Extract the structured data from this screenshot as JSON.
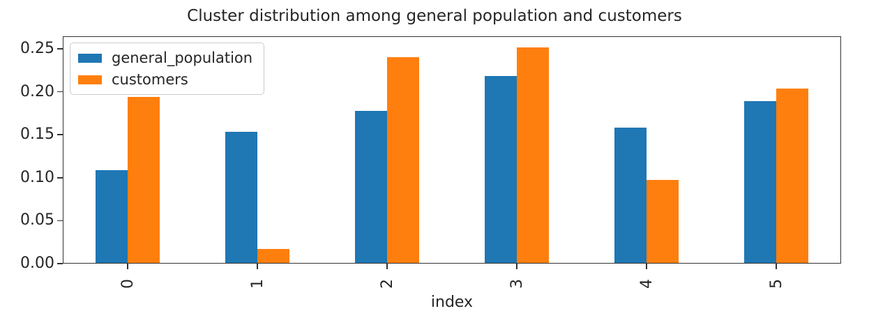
{
  "chart_data": {
    "type": "bar",
    "title": "Cluster distribution among general population and customers",
    "xlabel": "index",
    "ylabel": "",
    "categories": [
      "0",
      "1",
      "2",
      "3",
      "4",
      "5"
    ],
    "series": [
      {
        "name": "general_population",
        "color": "#1f77b4",
        "values": [
          0.109,
          0.153,
          0.178,
          0.218,
          0.158,
          0.189
        ]
      },
      {
        "name": "customers",
        "color": "#ff7f0e",
        "values": [
          0.194,
          0.017,
          0.24,
          0.252,
          0.097,
          0.204
        ]
      }
    ],
    "ylim": [
      0,
      0.2646
    ],
    "yticks": [
      "0.00",
      "0.05",
      "0.10",
      "0.15",
      "0.20",
      "0.25"
    ],
    "xtick_rotation_deg": 90,
    "grid": false,
    "legend": {
      "position": "upper left",
      "entries": [
        "general_population",
        "customers"
      ]
    }
  }
}
